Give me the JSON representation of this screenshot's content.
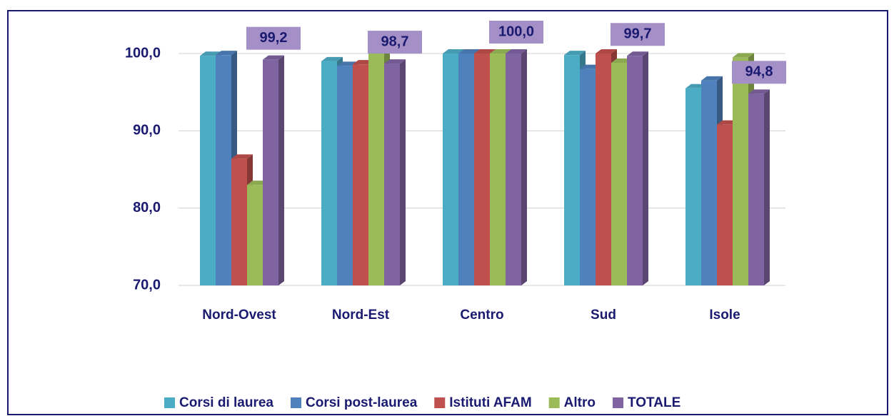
{
  "chart_data": {
    "type": "bar",
    "categories": [
      "Nord-Ovest",
      "Nord-Est",
      "Centro",
      "Sud",
      "Isole"
    ],
    "series": [
      {
        "name": "Corsi di laurea",
        "color": "#4bacc6",
        "values": [
          99.7,
          99.0,
          100.0,
          99.8,
          95.5
        ]
      },
      {
        "name": "Corsi post-laurea",
        "color": "#4f81bd",
        "values": [
          99.8,
          98.4,
          100.0,
          98.0,
          96.5
        ]
      },
      {
        "name": "Istituti AFAM",
        "color": "#c0504d",
        "values": [
          86.4,
          98.6,
          100.0,
          100.0,
          90.8
        ]
      },
      {
        "name": "Altro",
        "color": "#9bbb59",
        "values": [
          83.0,
          100.0,
          100.0,
          98.8,
          99.5
        ]
      },
      {
        "name": "TOTALE",
        "color": "#8064a2",
        "values": [
          99.2,
          98.7,
          100.0,
          99.7,
          94.8
        ],
        "value_labels": [
          "99,2",
          "98,7",
          "100,0",
          "99,7",
          "94,8"
        ]
      }
    ],
    "ylim": [
      70,
      100
    ],
    "yticks": [
      {
        "value": 70,
        "label": "70,0"
      },
      {
        "value": 80,
        "label": "80,0"
      },
      {
        "value": 90,
        "label": "90,0"
      },
      {
        "value": 100,
        "label": "100,0"
      }
    ],
    "grid": true,
    "legend": "bottom"
  }
}
